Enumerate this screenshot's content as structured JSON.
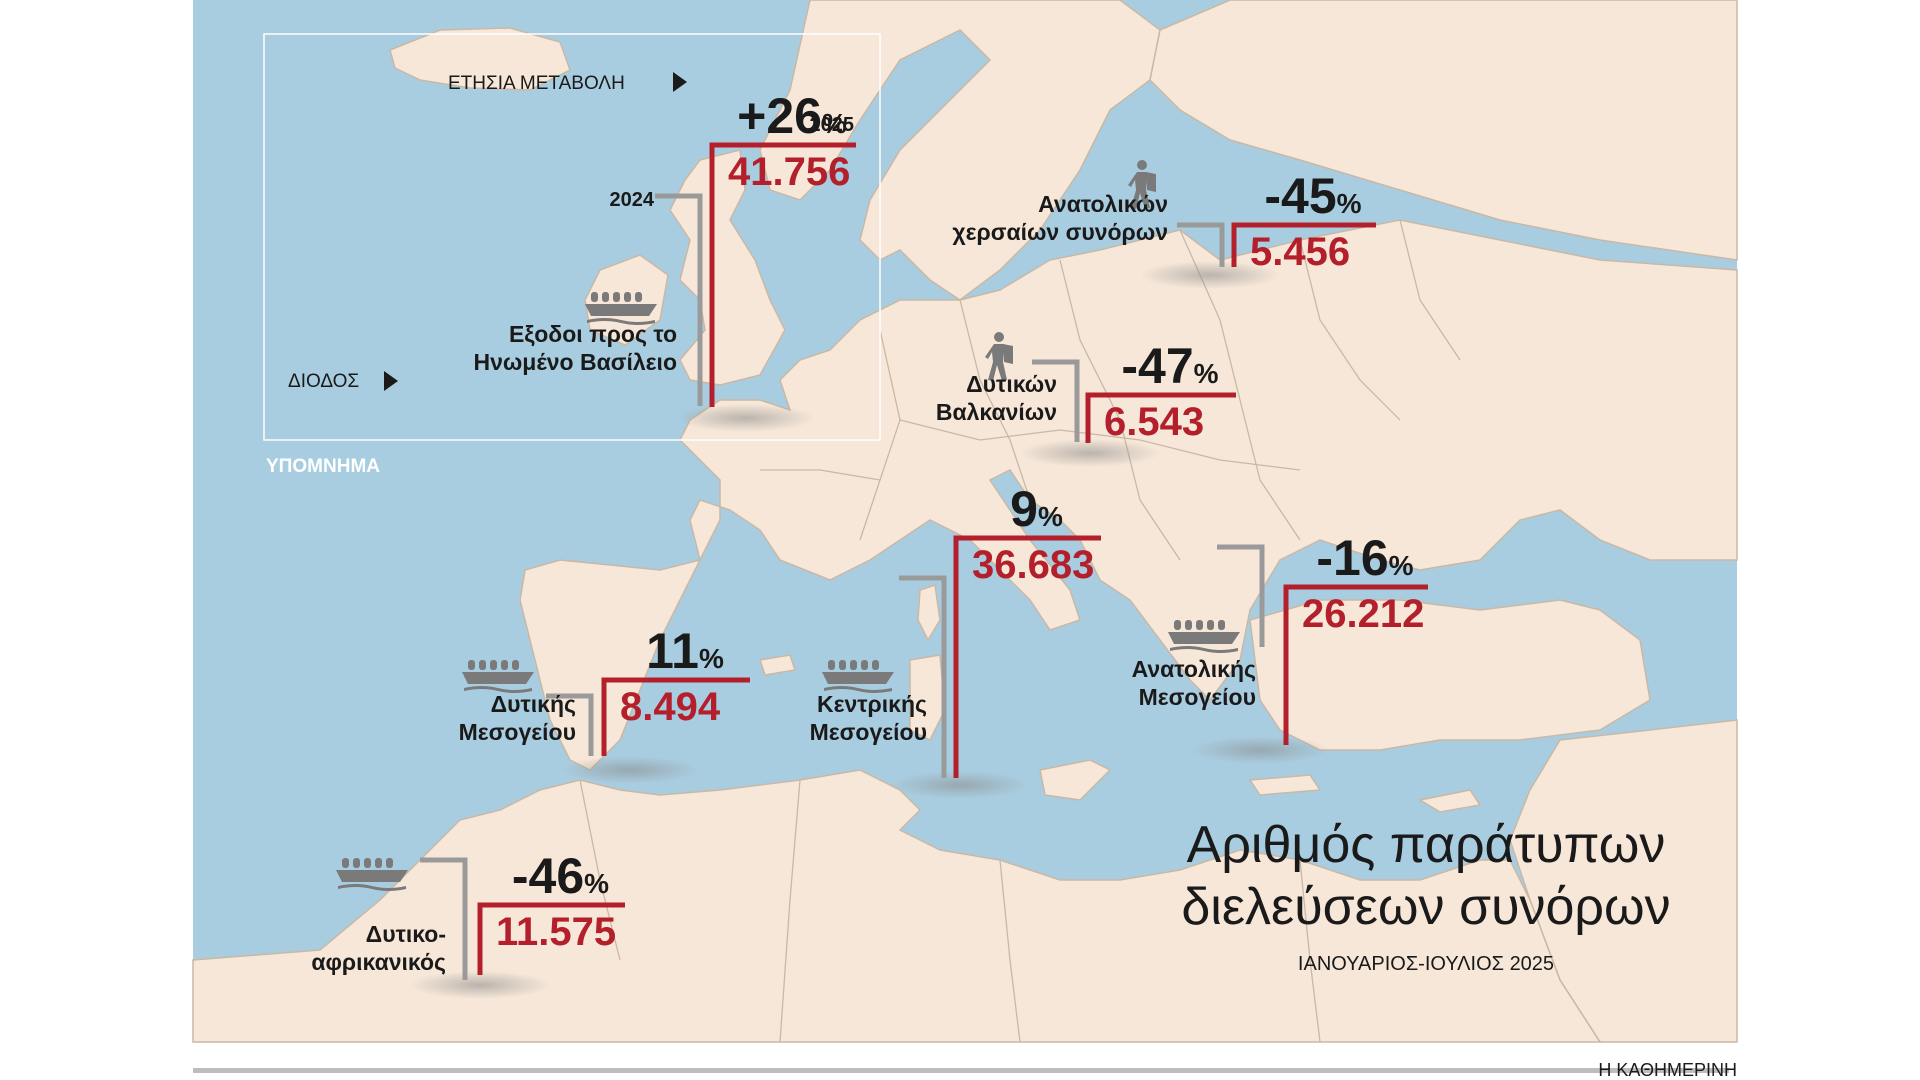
{
  "colors": {
    "sea": "#a9cde0",
    "land": "#f6e7d8",
    "border": "#c9b8a6",
    "value_2025": "#b3202c",
    "value_2024": "#9a9a9a",
    "icon": "#7a7a7a",
    "text": "#1a1a1a"
  },
  "title": {
    "line1": "Αριθμός παράτυπων",
    "line2": "διελεύσεων συνόρων",
    "subtitle": "ΙΑΝΟΥΑΡΙΟΣ-ΙΟΥΛΙΟΣ 2025"
  },
  "legend": {
    "title": "ΥΠΟΜΝΗΜΑ",
    "annual_change": "ΕΤΗΣΙΑ ΜΕΤΑΒΟΛΗ",
    "route": "ΔΙΟΔΟΣ",
    "year_2025": "2025",
    "year_2024": "2024"
  },
  "routes": [
    {
      "id": "uk",
      "label_line1": "Εξοδοι προς το",
      "label_line2": "Ηνωμένο Βασίλειο",
      "change": "+26",
      "value": "41.756",
      "icon": "boat-icon"
    },
    {
      "id": "east_land",
      "label_line1": "Ανατολικών",
      "label_line2": "χερσαίων συνόρων",
      "change": "-45",
      "value": "5.456",
      "icon": "walker-icon"
    },
    {
      "id": "west_balkans",
      "label_line1": "Δυτικών",
      "label_line2": "Βαλκανίων",
      "change": "-47",
      "value": "6.543",
      "icon": "walker-icon"
    },
    {
      "id": "central_med",
      "label_line1": "Κεντρικής",
      "label_line2": "Μεσογείου",
      "change": "9",
      "value": "36.683",
      "icon": "boat-icon"
    },
    {
      "id": "east_med",
      "label_line1": "Ανατολικής",
      "label_line2": "Μεσογείου",
      "change": "-16",
      "value": "26.212",
      "icon": "boat-icon"
    },
    {
      "id": "west_med",
      "label_line1": "Δυτικής",
      "label_line2": "Μεσογείου",
      "change": "11",
      "value": "8.494",
      "icon": "boat-icon"
    },
    {
      "id": "west_africa",
      "label_line1": "Δυτικο-",
      "label_line2": "αφρικανικός",
      "change": "-46",
      "value": "11.575",
      "icon": "boat-icon"
    }
  ],
  "percent_sign": "%",
  "source": "Η ΚΑΘΗΜΕΡΙΝΗ"
}
